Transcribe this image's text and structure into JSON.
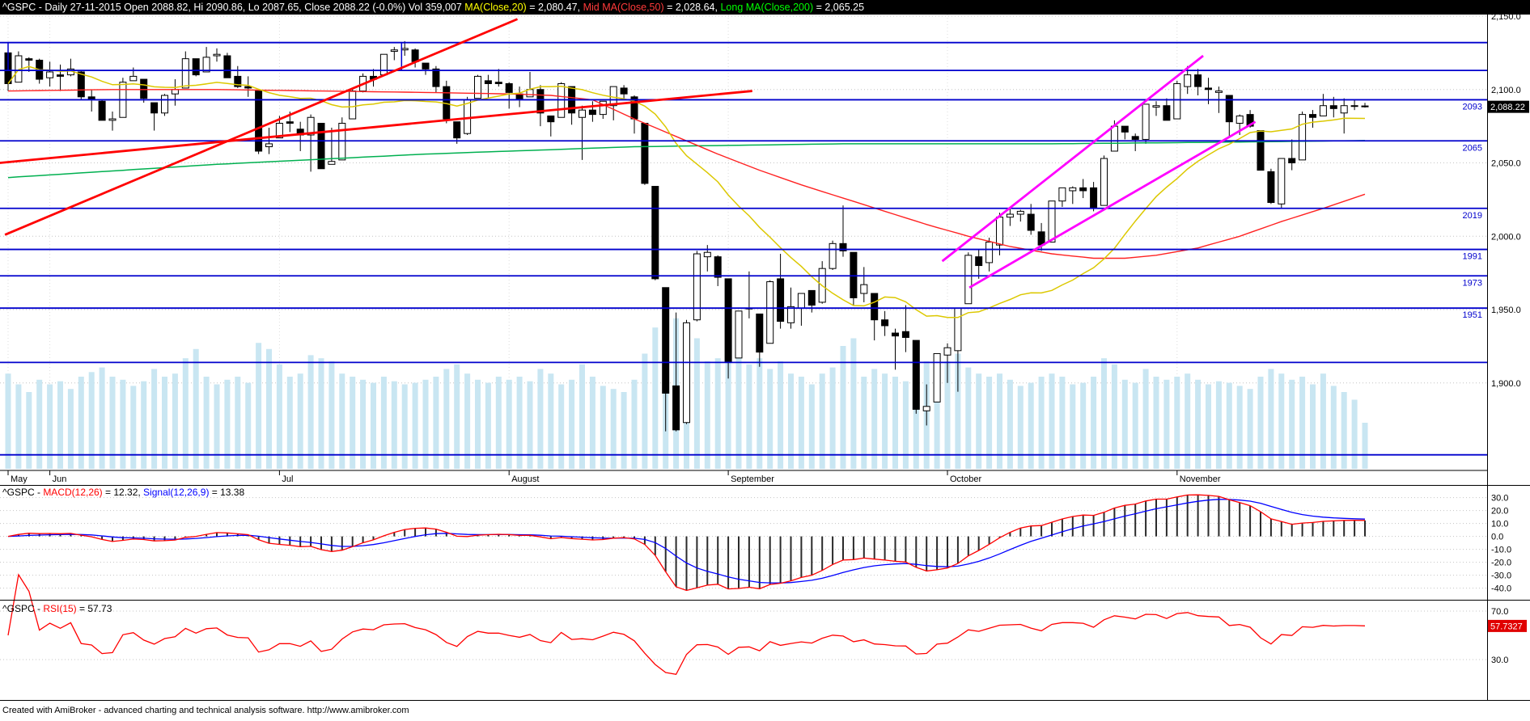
{
  "title_bar": {
    "bg": "#000000",
    "segments": [
      {
        "text": "^GSPC - Daily 27-11-2015 Open 2088.82, Hi 2090.86, Lo 2087.65, Close 2088.22 (-0.0%) Vol 359,007 ",
        "color": "#ffffff"
      },
      {
        "text": "MA(Close,20)",
        "color": "#ffff00"
      },
      {
        "text": " = 2,080.47, ",
        "color": "#ffffff"
      },
      {
        "text": "Mid MA(Close,50)",
        "color": "#ff3a3a"
      },
      {
        "text": " = 2,028.64, ",
        "color": "#ffffff"
      },
      {
        "text": "Long MA(Close,200)",
        "color": "#00ff00"
      },
      {
        "text": " = 2,065.25",
        "color": "#ffffff"
      }
    ]
  },
  "macd_title": {
    "segments": [
      {
        "text": "^GSPC - ",
        "color": "#000000"
      },
      {
        "text": "MACD(12,26)",
        "color": "#ff0000"
      },
      {
        "text": " = 12.32, ",
        "color": "#000000"
      },
      {
        "text": "Signal(12,26,9)",
        "color": "#0000ff"
      },
      {
        "text": " = 13.38",
        "color": "#000000"
      }
    ]
  },
  "rsi_title": {
    "segments": [
      {
        "text": "^GSPC - ",
        "color": "#000000"
      },
      {
        "text": "RSI(15)",
        "color": "#ff0000"
      },
      {
        "text": " = 57.73",
        "color": "#000000"
      }
    ]
  },
  "footer": {
    "text": "Created with AmiBroker - advanced charting and technical analysis software. http://www.amibroker.com"
  },
  "colors": {
    "volume": "#c9e6f2",
    "sr_line": "#0000cd",
    "sr_label": "#0000cd",
    "trend_red": "#ff0000",
    "trend_magenta": "#ff00ff",
    "ma20": "#dcc800",
    "ma50": "#ff2222",
    "ma200": "#00b050",
    "macd_line": "#ff0000",
    "signal_line": "#0000ff",
    "histogram": "#2a2a2a",
    "rsi_line": "#ff0000",
    "grid": "#c4c4c4",
    "month_grid": "#dcdcdc",
    "axis_text": "#000000",
    "price_badge_bg": "#000000",
    "price_badge_text": "#ffffff",
    "rsi_badge_bg": "#e00000",
    "rsi_badge_text": "#ffffff",
    "candle_up_fill": "#ffffff",
    "candle_down_fill": "#000000",
    "candle_stroke": "#000000"
  },
  "chart_data": [
    {
      "type": "candlestick",
      "symbol": "^GSPC",
      "timeframe": "Daily",
      "last_date": "27-11-2015",
      "last": {
        "open": 2088.82,
        "high": 2090.86,
        "low": 2087.65,
        "close": 2088.22,
        "change": "-0.0%",
        "volume": "359,007"
      },
      "price_badge": "2,088.22",
      "y_axis": {
        "tick_labels": [
          "2,150.0",
          "2,100.0",
          "2,050.0",
          "2,000.0",
          "1,950.0",
          "1,900.0"
        ],
        "tick_values": [
          2150,
          2100,
          2050,
          2000,
          1950,
          1900
        ]
      },
      "x_axis": {
        "month_labels": [
          {
            "label": "May",
            "day": 0
          },
          {
            "label": "Jun",
            "day": 4
          },
          {
            "label": "Jul",
            "day": 26
          },
          {
            "label": "August",
            "day": 48
          },
          {
            "label": "September",
            "day": 69
          },
          {
            "label": "October",
            "day": 90
          },
          {
            "label": "November",
            "day": 112
          }
        ]
      },
      "sr_lines": [
        {
          "price": 2132,
          "label": ""
        },
        {
          "price": 2113,
          "label": ""
        },
        {
          "price": 2093,
          "label": "2093"
        },
        {
          "price": 2065,
          "label": "2065"
        },
        {
          "price": 2019,
          "label": "2019"
        },
        {
          "price": 1991,
          "label": "1991"
        },
        {
          "price": 1973,
          "label": "1973"
        },
        {
          "price": 1951,
          "label": "1951"
        },
        {
          "price": 1914,
          "label": ""
        },
        {
          "price": 1851,
          "label": ""
        }
      ],
      "box": {
        "day_start": 0,
        "day_end": 37.7,
        "price_top": 2132,
        "price_bottom": 2113
      },
      "trendlines": [
        {
          "name": "red-steep-trendline",
          "color": "red",
          "d1": -0.3,
          "p1": 2001,
          "d2": 48.8,
          "p2": 2148
        },
        {
          "name": "red-shallow-trendline",
          "color": "red",
          "d1": -0.8,
          "p1": 2050,
          "d2": 71.3,
          "p2": 2099
        },
        {
          "name": "magenta-channel-upper",
          "color": "magenta",
          "d1": 89.5,
          "p1": 1983,
          "d2": 114.5,
          "p2": 2123
        },
        {
          "name": "magenta-channel-lower",
          "color": "magenta",
          "d1": 92.1,
          "p1": 1965,
          "d2": 119.5,
          "p2": 2078
        }
      ],
      "ma20_period": 20,
      "ma50_points": [
        [
          0,
          2099
        ],
        [
          10,
          2100
        ],
        [
          20,
          2100
        ],
        [
          30,
          2099
        ],
        [
          40,
          2098
        ],
        [
          48,
          2097
        ],
        [
          52,
          2096
        ],
        [
          56,
          2093
        ],
        [
          60,
          2080
        ],
        [
          64,
          2068
        ],
        [
          68,
          2056
        ],
        [
          72,
          2045
        ],
        [
          76,
          2035
        ],
        [
          80,
          2026
        ],
        [
          84,
          2017
        ],
        [
          88,
          2008
        ],
        [
          92,
          2000
        ],
        [
          96,
          1993
        ],
        [
          100,
          1988
        ],
        [
          104,
          1985
        ],
        [
          107,
          1985
        ],
        [
          110,
          1987
        ],
        [
          114,
          1992
        ],
        [
          118,
          2000
        ],
        [
          122,
          2010
        ],
        [
          126,
          2019
        ],
        [
          130,
          2028.6
        ]
      ],
      "ma200_points": [
        [
          0,
          2040
        ],
        [
          20,
          2049
        ],
        [
          40,
          2056
        ],
        [
          60,
          2061
        ],
        [
          80,
          2063
        ],
        [
          100,
          2063
        ],
        [
          115,
          2064
        ],
        [
          130,
          2065.2
        ]
      ],
      "open": [
        2125,
        2105,
        2121,
        2120,
        2108,
        2110,
        2110,
        2112,
        2095,
        2092,
        2079,
        2081,
        2106,
        2107,
        2091,
        2084,
        2097,
        2101,
        2121,
        2112,
        2123,
        2123,
        2109,
        2102,
        2099,
        2061,
        2067,
        2078,
        2073,
        2069,
        2077,
        2049,
        2052,
        2080,
        2099,
        2109,
        2110,
        2126,
        2127,
        2127,
        2118,
        2114,
        2102,
        2078,
        2070,
        2094,
        2106,
        2105,
        2104,
        2097,
        2095,
        2100,
        2082,
        2081,
        2102,
        2081,
        2086,
        2083,
        2089,
        2101,
        2095,
        2077,
        2034,
        1965,
        1898,
        1873,
        1943,
        1986,
        1986,
        1971,
        1917,
        1951,
        1947,
        1927,
        1971,
        1941,
        1951,
        1963,
        1955,
        1978,
        1995,
        1989,
        1961,
        1961,
        1943,
        1934,
        1935,
        1929,
        1881,
        1887,
        1919,
        1922,
        1954,
        1986,
        1982,
        1994,
        2013,
        2015,
        2015,
        2003,
        1996,
        2024,
        2031,
        2033,
        2033,
        2021,
        2058,
        2075,
        2068,
        2066,
        2088,
        2089,
        2080,
        2102,
        2110,
        2101,
        2098,
        2096,
        2077,
        2083,
        2072,
        2044,
        2022,
        2053,
        2052,
        2083,
        2082,
        2089,
        2084,
        2089,
        2088.8
      ],
      "high": [
        2126,
        2126,
        2122,
        2121,
        2119,
        2117,
        2121,
        2113,
        2100,
        2093,
        2085,
        2108,
        2115,
        2107,
        2091,
        2097,
        2107,
        2126,
        2121,
        2129,
        2128,
        2125,
        2116,
        2109,
        2099,
        2074,
        2082,
        2085,
        2078,
        2083,
        2077,
        2074,
        2081,
        2100,
        2111,
        2114,
        2124,
        2129,
        2133,
        2128,
        2118,
        2116,
        2106,
        2078,
        2095,
        2110,
        2110,
        2114,
        2105,
        2102,
        2112,
        2103,
        2082,
        2105,
        2102,
        2089,
        2092,
        2092,
        2102,
        2103,
        2096,
        2077,
        2034,
        1965,
        1948,
        1943,
        1990,
        1994,
        1987,
        1971,
        1949,
        1976,
        1947,
        1970,
        1988,
        1965,
        1961,
        1963,
        1983,
        1997,
        2021,
        1989,
        1979,
        1961,
        1949,
        1937,
        1953,
        1929,
        1899,
        1920,
        1927,
        1951,
        1989,
        1991,
        1999,
        2016,
        2020,
        2018,
        2022,
        2009,
        2024,
        2033,
        2034,
        2039,
        2037,
        2055,
        2079,
        2075,
        2070,
        2090,
        2092,
        2094,
        2106,
        2116,
        2114,
        2108,
        2102,
        2096,
        2083,
        2086,
        2072,
        2046,
        2053,
        2066,
        2085,
        2086,
        2097,
        2095,
        2094,
        2093,
        2090.9
      ],
      "low": [
        2099,
        2105,
        2112,
        2104,
        2102,
        2099,
        2109,
        2093,
        2085,
        2079,
        2072,
        2081,
        2106,
        2091,
        2072,
        2082,
        2089,
        2101,
        2109,
        2112,
        2119,
        2108,
        2101,
        2095,
        2056,
        2056,
        2067,
        2071,
        2058,
        2044,
        2046,
        2049,
        2052,
        2080,
        2098,
        2102,
        2110,
        2120,
        2123,
        2115,
        2110,
        2098,
        2077,
        2063,
        2069,
        2094,
        2094,
        2102,
        2087,
        2088,
        2095,
        2075,
        2068,
        2081,
        2076,
        2052,
        2078,
        2080,
        2079,
        2094,
        2070,
        2035,
        1970,
        1867,
        1867,
        1872,
        1942,
        1976,
        1966,
        1903,
        1917,
        1944,
        1911,
        1927,
        1937,
        1937,
        1939,
        1948,
        1954,
        1977,
        1986,
        1953,
        1955,
        1929,
        1932,
        1909,
        1921,
        1879,
        1871,
        1887,
        1900,
        1894,
        1954,
        1971,
        1976,
        1987,
        2007,
        2010,
        2001,
        1990,
        1996,
        2020,
        2022,
        2026,
        2017,
        2021,
        2058,
        2066,
        2058,
        2063,
        2082,
        2079,
        2080,
        2097,
        2096,
        2090,
        2084,
        2068,
        2069,
        2074,
        2045,
        2022,
        2019,
        2045,
        2052,
        2074,
        2082,
        2081,
        2070,
        2086,
        2087.7
      ],
      "close": [
        2104,
        2123,
        2120,
        2107,
        2112,
        2109,
        2114,
        2095,
        2093,
        2079,
        2080,
        2105,
        2109,
        2094,
        2084,
        2096,
        2100,
        2121,
        2110,
        2122,
        2124,
        2108,
        2102,
        2101,
        2058,
        2063,
        2077,
        2077,
        2069,
        2081,
        2046,
        2051,
        2077,
        2099,
        2109,
        2107,
        2124,
        2127,
        2128,
        2119,
        2114,
        2102,
        2080,
        2067,
        2093,
        2109,
        2104,
        2104,
        2098,
        2093,
        2100,
        2084,
        2078,
        2104,
        2084,
        2086,
        2083,
        2092,
        2102,
        2097,
        2080,
        2036,
        1971,
        1893,
        1868,
        1941,
        1988,
        1989,
        1972,
        1914,
        1949,
        1951,
        1921,
        1969,
        1942,
        1952,
        1961,
        1953,
        1978,
        1995,
        1990,
        1958,
        1967,
        1943,
        1939,
        1932,
        1931,
        1882,
        1884,
        1920,
        1924,
        1951,
        1987,
        1980,
        1996,
        2013,
        2015,
        2017,
        2004,
        1994,
        2024,
        2033,
        2033,
        2031,
        2019,
        2053,
        2075,
        2071,
        2066,
        2090,
        2089,
        2079,
        2104,
        2110,
        2102,
        2100,
        2099,
        2078,
        2082,
        2075,
        2045,
        2023,
        2053,
        2050,
        2083,
        2081,
        2089,
        2087,
        2089,
        2089,
        2088.2
      ],
      "volume_rel": [
        0.62,
        0.55,
        0.5,
        0.58,
        0.55,
        0.57,
        0.52,
        0.6,
        0.63,
        0.66,
        0.6,
        0.58,
        0.54,
        0.57,
        0.65,
        0.6,
        0.62,
        0.72,
        0.78,
        0.6,
        0.55,
        0.58,
        0.6,
        0.56,
        0.82,
        0.78,
        0.68,
        0.6,
        0.62,
        0.74,
        0.72,
        0.7,
        0.62,
        0.6,
        0.58,
        0.56,
        0.6,
        0.57,
        0.55,
        0.56,
        0.58,
        0.6,
        0.65,
        0.68,
        0.62,
        0.58,
        0.56,
        0.6,
        0.58,
        0.6,
        0.57,
        0.65,
        0.62,
        0.55,
        0.58,
        0.68,
        0.6,
        0.54,
        0.52,
        0.5,
        0.58,
        0.75,
        0.92,
        1.0,
        0.98,
        0.9,
        0.85,
        0.7,
        0.72,
        0.85,
        0.75,
        0.68,
        0.72,
        0.65,
        0.7,
        0.62,
        0.6,
        0.55,
        0.62,
        0.66,
        0.8,
        0.85,
        0.6,
        0.65,
        0.62,
        0.6,
        0.57,
        0.75,
        0.7,
        0.72,
        0.7,
        0.75,
        0.66,
        0.62,
        0.6,
        0.62,
        0.58,
        0.54,
        0.56,
        0.6,
        0.62,
        0.6,
        0.55,
        0.56,
        0.6,
        0.72,
        0.68,
        0.58,
        0.56,
        0.65,
        0.6,
        0.58,
        0.6,
        0.62,
        0.58,
        0.55,
        0.57,
        0.56,
        0.54,
        0.52,
        0.6,
        0.65,
        0.62,
        0.58,
        0.6,
        0.55,
        0.62,
        0.54,
        0.5,
        0.45,
        0.3
      ]
    },
    {
      "type": "line",
      "name": "MACD",
      "params": "12,26",
      "signal_params": "12,26,9",
      "macd_value": 12.32,
      "signal_value": 13.38,
      "y_axis": {
        "tick_labels": [
          "30.0",
          "20.0",
          "10.0",
          "0.0",
          "-10.0",
          "-20.0",
          "-30.0",
          "-40.0"
        ],
        "tick_values": [
          30,
          20,
          10,
          0,
          -10,
          -20,
          -30,
          -40
        ]
      }
    },
    {
      "type": "line",
      "name": "RSI",
      "period": 15,
      "value": 57.73,
      "badge": "57.7327",
      "y_axis": {
        "tick_labels": [
          "70.0",
          "30.0"
        ],
        "tick_values": [
          70,
          30
        ]
      }
    }
  ]
}
